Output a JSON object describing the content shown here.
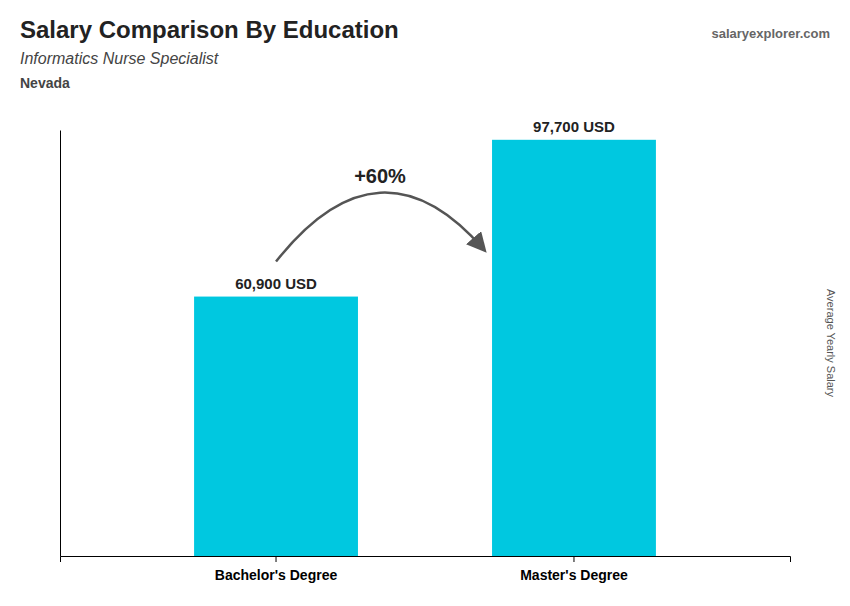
{
  "chart_data": {
    "type": "bar",
    "title": "Salary Comparison By Education",
    "subtitle": "Informatics Nurse Specialist",
    "ylabel": "Average Yearly Salary",
    "annotations": [
      "Nevada",
      "+60%",
      "salaryexplorer.com"
    ],
    "categories": [
      "Bachelor's Degree",
      "Master's Degree"
    ],
    "values": [
      60900,
      97700
    ],
    "value_labels": [
      "60,900 USD",
      "97,700 USD"
    ],
    "data_labels": true,
    "color": "#00c8e0",
    "ylim": [
      0,
      100000
    ],
    "tick_labels": "x",
    "grid": false
  }
}
